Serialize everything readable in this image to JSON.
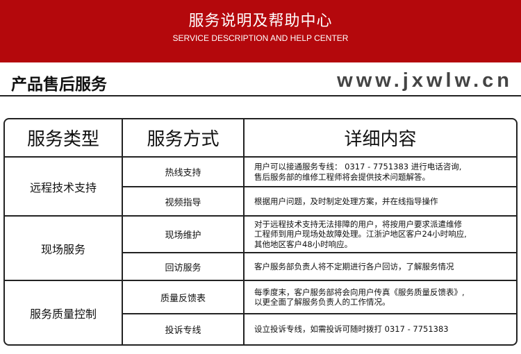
{
  "banner": {
    "title": "服务说明及帮助中心",
    "subtitle": "SERVICE DESCRIPTION AND HELP CENTER",
    "color": "#b4080c"
  },
  "section_title": "产品售后服务",
  "table": {
    "headers": [
      "服务类型",
      "服务方式",
      "详细内容"
    ],
    "groups": [
      {
        "type": "远程技术支持",
        "rows": [
          {
            "method": "热线支持",
            "detail": [
              "用户可以接通服务专线： 0317 - 7751383 进行电话咨询,",
              "售后服务部的维修工程师将会提供技术问题解答。"
            ]
          },
          {
            "method": "视频指导",
            "detail": [
              "根据用户问题，及时制定处理方案，并在线指导操作"
            ]
          }
        ]
      },
      {
        "type": "现场服务",
        "rows": [
          {
            "method": "现场维护",
            "detail": [
              "对于远程技术支持无法排障的用户，将按用户要求派遣维修",
              "工程师到用户现场处故障处理。江浙沪地区客户24小时响应,",
              "其他地区客户48小时响应。"
            ]
          },
          {
            "method": "回访服务",
            "detail": [
              "客户服务部负责人将不定期进行各户回访，了解服务情况"
            ]
          }
        ]
      },
      {
        "type": "服务质量控制",
        "rows": [
          {
            "method": "质量反馈表",
            "detail": [
              "每季度末，客户服务部将会向用户传真《服务质量反馈表》,",
              "以更全面了解服务负责人的工作情况。"
            ]
          },
          {
            "method": "投诉专线",
            "detail": [
              "设立投诉专线，如需投诉可随时拨打 0317 - 7751383"
            ]
          }
        ]
      }
    ]
  },
  "watermark": "www.jxwlw.cn"
}
